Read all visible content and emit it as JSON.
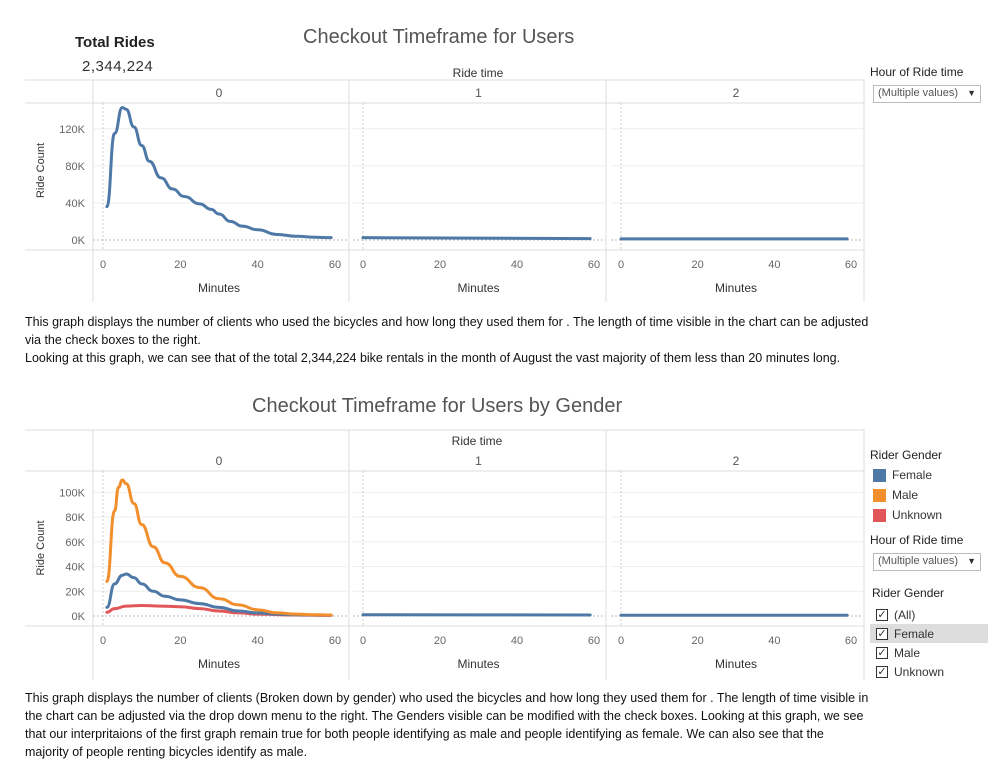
{
  "kpi": {
    "title": "Total Rides",
    "value": "2,344,224"
  },
  "chart1": {
    "title": "Checkout Timeframe for Users",
    "header_label": "Ride time",
    "panels": [
      "0",
      "1",
      "2"
    ],
    "y_label": "Ride Count",
    "y_ticks": [
      "120K",
      "80K",
      "40K",
      "0K"
    ],
    "x_ticks": [
      "0",
      "20",
      "40",
      "60"
    ],
    "x_label": "Minutes"
  },
  "chart2": {
    "title": "Checkout Timeframe for Users by Gender",
    "header_label": "Ride time",
    "panels": [
      "0",
      "1",
      "2"
    ],
    "y_label": "Ride Count",
    "y_ticks": [
      "100K",
      "80K",
      "60K",
      "40K",
      "20K",
      "0K"
    ],
    "x_ticks": [
      "0",
      "20",
      "40",
      "60"
    ],
    "x_label": "Minutes"
  },
  "filter1": {
    "title": "Hour of Ride time",
    "value": "(Multiple values)"
  },
  "legend": {
    "title": "Rider Gender",
    "items": [
      {
        "label": "Female",
        "color": "#4e79a7"
      },
      {
        "label": "Male",
        "color": "#f28e2b"
      },
      {
        "label": "Unknown",
        "color": "#e15759"
      }
    ]
  },
  "filter2": {
    "title": "Hour of Ride time",
    "value": "(Multiple values)"
  },
  "gender_filter": {
    "title": "Rider Gender",
    "options": [
      {
        "label": "(All)",
        "checked": true
      },
      {
        "label": "Female",
        "checked": true
      },
      {
        "label": "Male",
        "checked": true
      },
      {
        "label": "Unknown",
        "checked": true
      }
    ]
  },
  "paragraph1": {
    "line1": "This graph displays the number of clients who used the bicycles and how long they used them for . The length of time visible in the chart can be adjusted via the check boxes to the right.",
    "line2": "Looking at this graph, we can see that of the total 2,344,224 bike rentals in the month of August the vast majority of them less than 20 minutes long."
  },
  "paragraph2": {
    "text": "This graph displays the number of clients (Broken down by gender) who used the bicycles and how long they used them for . The length of time visible in the chart can be adjusted via the drop down menu to the right. The Genders visible can be modified with the check boxes. Looking at this graph, we see that our interpritaions of the first graph remain true for both people identifying as male and people identifying as female. We can also see that the majority of people renting bicycles identify as male."
  },
  "chart_data": [
    {
      "type": "line",
      "title": "Checkout Timeframe for Users",
      "xlabel": "Minutes",
      "ylabel": "Ride Count",
      "facet_label": "Ride time",
      "facets": [
        "0",
        "1",
        "2"
      ],
      "xlim": [
        0,
        60
      ],
      "ylim": [
        0,
        150000
      ],
      "series": [
        {
          "facet": "0",
          "x": [
            1,
            3,
            5,
            6,
            8,
            10,
            12,
            15,
            18,
            21,
            25,
            28,
            30,
            33,
            36,
            40,
            45,
            50,
            55,
            59
          ],
          "y": [
            36000,
            115000,
            143000,
            141000,
            122000,
            102000,
            85000,
            67000,
            55000,
            47000,
            39000,
            33000,
            28000,
            20000,
            15000,
            11000,
            6000,
            4000,
            3000,
            2500
          ]
        },
        {
          "facet": "1",
          "x": [
            0,
            59
          ],
          "y": [
            2500,
            1500
          ]
        },
        {
          "facet": "2",
          "x": [
            0,
            59
          ],
          "y": [
            1200,
            1200
          ]
        }
      ]
    },
    {
      "type": "line",
      "title": "Checkout Timeframe for Users by Gender",
      "xlabel": "Minutes",
      "ylabel": "Ride Count",
      "facet_label": "Ride time",
      "facets": [
        "0",
        "1",
        "2"
      ],
      "xlim": [
        0,
        60
      ],
      "ylim": [
        0,
        110000
      ],
      "series": [
        {
          "name": "Female",
          "color": "#4e79a7",
          "facet": "0",
          "x": [
            1,
            3,
            5,
            6,
            8,
            10,
            13,
            16,
            20,
            25,
            30,
            35,
            40,
            45,
            50,
            55,
            59
          ],
          "y": [
            7000,
            26000,
            33000,
            34000,
            31000,
            26000,
            20000,
            16000,
            13000,
            10000,
            7000,
            4000,
            2500,
            1500,
            1000,
            800,
            700
          ]
        },
        {
          "name": "Male",
          "color": "#f28e2b",
          "facet": "0",
          "x": [
            1,
            3,
            4,
            5,
            6,
            8,
            10,
            13,
            16,
            20,
            25,
            30,
            35,
            40,
            45,
            50,
            55,
            59
          ],
          "y": [
            28000,
            85000,
            104000,
            110000,
            107000,
            91000,
            74000,
            56000,
            43000,
            32000,
            23000,
            14000,
            9000,
            5000,
            2500,
            1500,
            1000,
            800
          ]
        },
        {
          "name": "Unknown",
          "color": "#e15759",
          "facet": "0",
          "x": [
            1,
            3,
            6,
            10,
            15,
            20,
            25,
            30,
            35,
            40,
            50,
            59
          ],
          "y": [
            3000,
            6000,
            8000,
            8500,
            8000,
            7500,
            6000,
            4000,
            2500,
            1500,
            800,
            500
          ]
        },
        {
          "name": "Female",
          "color": "#4e79a7",
          "facet": "1",
          "x": [
            0,
            59
          ],
          "y": [
            1000,
            800
          ]
        },
        {
          "name": "Female",
          "color": "#4e79a7",
          "facet": "2",
          "x": [
            0,
            59
          ],
          "y": [
            600,
            600
          ]
        }
      ]
    }
  ]
}
